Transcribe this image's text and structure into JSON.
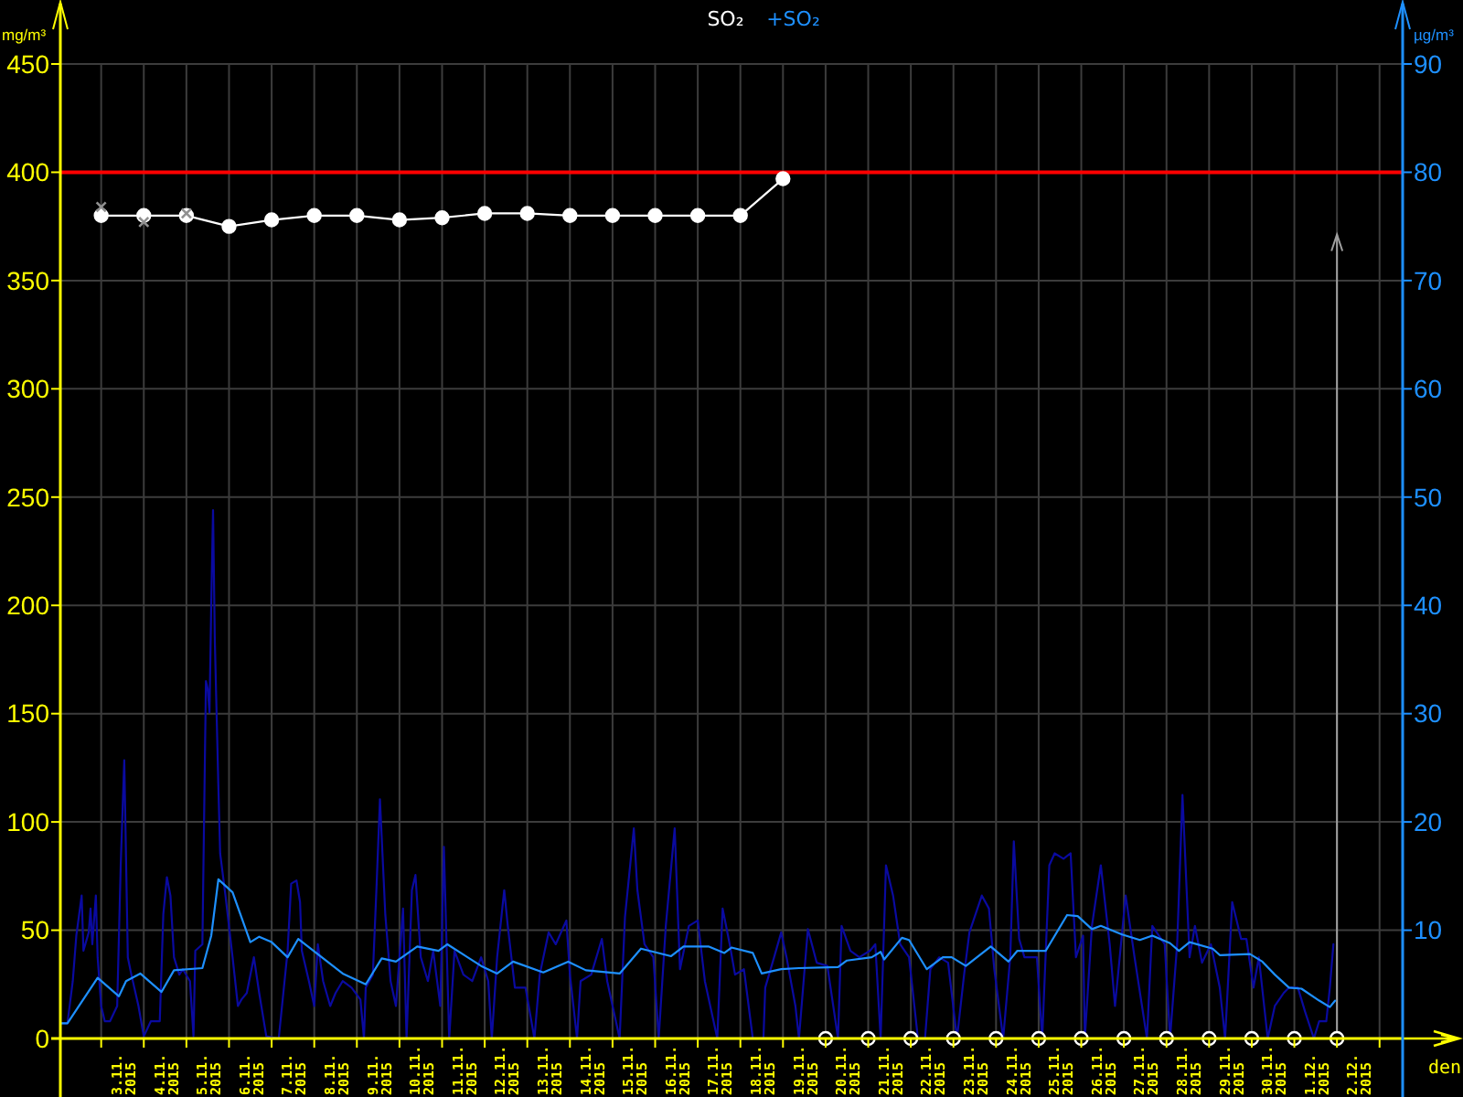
{
  "chart_data": {
    "type": "line",
    "xlabel": "den",
    "ylabel": "mg/m³",
    "y2label": "µg/m³",
    "legend": "top",
    "grid": true,
    "xlim": [
      "2015-11-02T01:00",
      "2015-12-03T13:00"
    ],
    "xticks": [
      {
        "value": "2015-11-03T00:00",
        "label": null
      },
      {
        "value": "2015-11-03T12:00",
        "label": "3.11. 2015"
      },
      {
        "value": "2015-11-04T00:00",
        "label": null
      },
      {
        "value": "2015-11-04T12:00",
        "label": "4.11. 2015"
      },
      {
        "value": "2015-11-05T00:00",
        "label": null
      },
      {
        "value": "2015-11-05T12:00",
        "label": "5.11. 2015"
      },
      {
        "value": "2015-11-06T00:00",
        "label": null
      },
      {
        "value": "2015-11-06T12:00",
        "label": "6.11. 2015"
      },
      {
        "value": "2015-11-07T00:00",
        "label": null
      },
      {
        "value": "2015-11-07T12:00",
        "label": "7.11. 2015"
      },
      {
        "value": "2015-11-08T00:00",
        "label": null
      },
      {
        "value": "2015-11-08T12:00",
        "label": "8.11. 2015"
      },
      {
        "value": "2015-11-09T00:00",
        "label": null
      },
      {
        "value": "2015-11-09T12:00",
        "label": "9.11. 2015"
      },
      {
        "value": "2015-11-10T00:00",
        "label": null
      },
      {
        "value": "2015-11-10T12:00",
        "label": "10.11. 2015"
      },
      {
        "value": "2015-11-11T00:00",
        "label": null
      },
      {
        "value": "2015-11-11T12:00",
        "label": "11.11. 2015"
      },
      {
        "value": "2015-11-12T00:00",
        "label": null
      },
      {
        "value": "2015-11-12T12:00",
        "label": "12.11. 2015"
      },
      {
        "value": "2015-11-13T00:00",
        "label": null
      },
      {
        "value": "2015-11-13T12:00",
        "label": "13.11. 2015"
      },
      {
        "value": "2015-11-14T00:00",
        "label": null
      },
      {
        "value": "2015-11-14T12:00",
        "label": "14.11. 2015"
      },
      {
        "value": "2015-11-15T00:00",
        "label": null
      },
      {
        "value": "2015-11-15T12:00",
        "label": "15.11. 2015"
      },
      {
        "value": "2015-11-16T00:00",
        "label": null
      },
      {
        "value": "2015-11-16T12:00",
        "label": "16.11. 2015"
      },
      {
        "value": "2015-11-17T00:00",
        "label": null
      },
      {
        "value": "2015-11-17T12:00",
        "label": "17.11. 2015"
      },
      {
        "value": "2015-11-18T00:00",
        "label": null
      },
      {
        "value": "2015-11-18T12:00",
        "label": "18.11. 2015"
      },
      {
        "value": "2015-11-19T00:00",
        "label": null
      },
      {
        "value": "2015-11-19T12:00",
        "label": "19.11. 2015"
      },
      {
        "value": "2015-11-20T00:00",
        "label": null
      },
      {
        "value": "2015-11-20T12:00",
        "label": "20.11. 2015"
      },
      {
        "value": "2015-11-21T00:00",
        "label": null
      },
      {
        "value": "2015-11-21T12:00",
        "label": "21.11. 2015"
      },
      {
        "value": "2015-11-22T00:00",
        "label": null
      },
      {
        "value": "2015-11-22T12:00",
        "label": "22.11. 2015"
      },
      {
        "value": "2015-11-23T00:00",
        "label": null
      },
      {
        "value": "2015-11-23T12:00",
        "label": "23.11. 2015"
      },
      {
        "value": "2015-11-24T00:00",
        "label": null
      },
      {
        "value": "2015-11-24T12:00",
        "label": "24.11. 2015"
      },
      {
        "value": "2015-11-25T00:00",
        "label": null
      },
      {
        "value": "2015-11-25T12:00",
        "label": "25.11. 2015"
      },
      {
        "value": "2015-11-26T00:00",
        "label": null
      },
      {
        "value": "2015-11-26T12:00",
        "label": "26.11. 2015"
      },
      {
        "value": "2015-11-27T00:00",
        "label": null
      },
      {
        "value": "2015-11-27T12:00",
        "label": "27.11. 2015"
      },
      {
        "value": "2015-11-28T00:00",
        "label": null
      },
      {
        "value": "2015-11-28T12:00",
        "label": "28.11. 2015"
      },
      {
        "value": "2015-11-29T00:00",
        "label": null
      },
      {
        "value": "2015-11-29T12:00",
        "label": "29.11. 2015"
      },
      {
        "value": "2015-11-30T00:00",
        "label": null
      },
      {
        "value": "2015-11-30T12:00",
        "label": "30.11. 2015"
      },
      {
        "value": "2015-12-01T00:00",
        "label": null
      },
      {
        "value": "2015-12-01T12:00",
        "label": "1.12. 2015"
      },
      {
        "value": "2015-12-02T00:00",
        "label": null
      },
      {
        "value": "2015-12-02T12:00",
        "label": "2.12. 2015"
      },
      {
        "value": "2015-12-03T00:00",
        "label": null
      }
    ],
    "ylim": [
      0,
      450
    ],
    "yticks": [
      0,
      50,
      100,
      150,
      200,
      250,
      300,
      350,
      400,
      450
    ],
    "y2lim": [
      0,
      90
    ],
    "y2ticks": [
      10,
      20,
      30,
      40,
      50,
      60,
      70,
      80,
      90
    ],
    "ref_lines": [
      {
        "axis": "y",
        "value": 400,
        "color": "#ff0000"
      },
      {
        "axis": "x",
        "value": "2015-12-02T00:00",
        "color": "#a0a0a0"
      }
    ],
    "series": [
      {
        "axis": "y2",
        "color": "#0a0aa0",
        "x": [
          "2015-11-02T01:00",
          "2015-11-02T05:00",
          "2015-11-02T08:00",
          "2015-11-02T10:00",
          "2015-11-02T13:00",
          "2015-11-02T14:00",
          "2015-11-02T17:00",
          "2015-11-02T18:00",
          "2015-11-02T19:00",
          "2015-11-02T21:00",
          "2015-11-02T22:00",
          "2015-11-03T00:00",
          "2015-11-03T02:00",
          "2015-11-03T05:00",
          "2015-11-03T09:00",
          "2015-11-03T11:00",
          "2015-11-03T13:00",
          "2015-11-03T15:00",
          "2015-11-03T17:00",
          "2015-11-03T21:00",
          "2015-11-04T00:00",
          "2015-11-04T04:00",
          "2015-11-04T09:00",
          "2015-11-04T11:00",
          "2015-11-04T13:00",
          "2015-11-04T15:00",
          "2015-11-04T17:00",
          "2015-11-04T20:00",
          "2015-11-04T22:00",
          "2015-11-05T02:00",
          "2015-11-05T04:00",
          "2015-11-05T05:00",
          "2015-11-05T09:00",
          "2015-11-05T11:00",
          "2015-11-05T12:00",
          "2015-11-05T13:00",
          "2015-11-05T14:00",
          "2015-11-05T15:00",
          "2015-11-05T16:00",
          "2015-11-05T18:00",
          "2015-11-05T19:00",
          "2015-11-05T22:00",
          "2015-11-06T02:00",
          "2015-11-06T05:00",
          "2015-11-06T07:00",
          "2015-11-06T10:00",
          "2015-11-06T14:00",
          "2015-11-06T17:00",
          "2015-11-06T21:00",
          "2015-11-07T04:00",
          "2015-11-07T09:00",
          "2015-11-07T11:00",
          "2015-11-07T14:00",
          "2015-11-07T16:00",
          "2015-11-07T17:00",
          "2015-11-07T21:00",
          "2015-11-08T00:00",
          "2015-11-08T02:00",
          "2015-11-08T05:00",
          "2015-11-08T09:00",
          "2015-11-08T12:00",
          "2015-11-08T16:00",
          "2015-11-08T21:00",
          "2015-11-09T02:00",
          "2015-11-09T04:00",
          "2015-11-09T05:00",
          "2015-11-09T09:00",
          "2015-11-09T11:00",
          "2015-11-09T13:00",
          "2015-11-09T16:00",
          "2015-11-09T19:00",
          "2015-11-09T22:00",
          "2015-11-10T02:00",
          "2015-11-10T04:00",
          "2015-11-10T07:00",
          "2015-11-10T09:00",
          "2015-11-10T12:00",
          "2015-11-10T16:00",
          "2015-11-10T19:00",
          "2015-11-10T23:00",
          "2015-11-11T01:00",
          "2015-11-11T04:00",
          "2015-11-11T07:00",
          "2015-11-11T12:00",
          "2015-11-11T17:00",
          "2015-11-11T22:00",
          "2015-11-12T02:00",
          "2015-11-12T04:00",
          "2015-11-12T07:00",
          "2015-11-12T11:00",
          "2015-11-12T13:00",
          "2015-11-12T17:00",
          "2015-11-12T23:00",
          "2015-11-13T04:00",
          "2015-11-13T07:00",
          "2015-11-13T12:00",
          "2015-11-13T16:00",
          "2015-11-13T22:00",
          "2015-11-14T00:00",
          "2015-11-14T04:00",
          "2015-11-14T06:00",
          "2015-11-14T12:00",
          "2015-11-14T18:00",
          "2015-11-14T21:00",
          "2015-11-15T04:00",
          "2015-11-15T07:00",
          "2015-11-15T12:00",
          "2015-11-15T14:00",
          "2015-11-15T18:00",
          "2015-11-15T23:00",
          "2015-11-16T02:00",
          "2015-11-16T06:00",
          "2015-11-16T11:00",
          "2015-11-16T14:00",
          "2015-11-16T19:00",
          "2015-11-17T00:00",
          "2015-11-17T04:00",
          "2015-11-17T11:00",
          "2015-11-17T14:00",
          "2015-11-17T18:00",
          "2015-11-17T21:00",
          "2015-11-18T02:00",
          "2015-11-18T07:00",
          "2015-11-18T13:00",
          "2015-11-18T14:00",
          "2015-11-18T19:00",
          "2015-11-18T23:00",
          "2015-11-19T02:00",
          "2015-11-19T07:00",
          "2015-11-19T09:00",
          "2015-11-19T14:00",
          "2015-11-19T19:00",
          "2015-11-20T01:00",
          "2015-11-20T07:00",
          "2015-11-20T09:00",
          "2015-11-20T14:00",
          "2015-11-20T19:00",
          "2015-11-21T01:00",
          "2015-11-21T04:00",
          "2015-11-21T07:00",
          "2015-11-21T10:00",
          "2015-11-21T14:00",
          "2015-11-21T18:00",
          "2015-11-21T23:00",
          "2015-11-22T04:00",
          "2015-11-22T08:00",
          "2015-11-22T11:00",
          "2015-11-22T16:00",
          "2015-11-22T21:00",
          "2015-11-23T02:00",
          "2015-11-23T06:00",
          "2015-11-23T09:00",
          "2015-11-23T16:00",
          "2015-11-23T20:00",
          "2015-11-23T23:00",
          "2015-11-24T04:00",
          "2015-11-24T08:00",
          "2015-11-24T10:00",
          "2015-11-24T13:00",
          "2015-11-24T16:00",
          "2015-11-24T23:00",
          "2015-11-25T02:00",
          "2015-11-25T06:00",
          "2015-11-25T09:00",
          "2015-11-25T14:00",
          "2015-11-25T18:00",
          "2015-11-25T21:00",
          "2015-11-26T01:00",
          "2015-11-26T02:00",
          "2015-11-26T06:00",
          "2015-11-26T11:00",
          "2015-11-26T16:00",
          "2015-11-26T19:00",
          "2015-11-27T01:00",
          "2015-11-27T06:00",
          "2015-11-27T13:00",
          "2015-11-27T16:00",
          "2015-11-27T23:00",
          "2015-11-28T02:00",
          "2015-11-28T06:00",
          "2015-11-28T09:00",
          "2015-11-28T13:00",
          "2015-11-28T16:00",
          "2015-11-28T20:00",
          "2015-11-29T01:00",
          "2015-11-29T06:00",
          "2015-11-29T09:00",
          "2015-11-29T13:00",
          "2015-11-29T18:00",
          "2015-11-29T21:00",
          "2015-11-30T01:00",
          "2015-11-30T04:00",
          "2015-11-30T09:00",
          "2015-11-30T13:00",
          "2015-11-30T18:00",
          "2015-11-30T21:00",
          "2015-12-01T02:00",
          "2015-12-01T06:00",
          "2015-12-01T11:00",
          "2015-12-01T14:00",
          "2015-12-01T18:00",
          "2015-12-01T20:00",
          "2015-12-01T22:00"
        ],
        "values": [
          1.4,
          1.4,
          5.3,
          9.5,
          13.2,
          8.1,
          9.8,
          12.0,
          8.7,
          13.2,
          7.5,
          3.0,
          1.6,
          1.6,
          3.0,
          16.0,
          25.7,
          7.5,
          5.9,
          3.0,
          0.2,
          1.6,
          1.6,
          11.5,
          14.9,
          13.2,
          7.5,
          5.9,
          6.4,
          5.3,
          0.2,
          8.1,
          8.7,
          33.0,
          32.3,
          30.1,
          40.2,
          48.8,
          36.8,
          23.3,
          17.1,
          13.2,
          7.5,
          3.0,
          3.6,
          4.2,
          7.5,
          4.2,
          0.2,
          0,
          8.1,
          14.3,
          14.6,
          12.6,
          8.1,
          5.3,
          3.0,
          8.7,
          5.3,
          3.0,
          4.2,
          5.3,
          4.7,
          3.6,
          0,
          4.7,
          5.9,
          13.7,
          22.1,
          11.5,
          5.3,
          3.0,
          12.0,
          0,
          13.7,
          15.1,
          7.5,
          5.3,
          8.1,
          3.0,
          17.7,
          0,
          8.1,
          5.9,
          5.3,
          7.5,
          5.3,
          0,
          7.5,
          13.7,
          10.4,
          4.7,
          4.7,
          0,
          5.9,
          9.8,
          8.7,
          10.9,
          5.9,
          0,
          5.3,
          5.9,
          9.2,
          5.3,
          0,
          11.2,
          19.4,
          13.7,
          8.7,
          7.5,
          0,
          10.4,
          19.4,
          6.4,
          10.4,
          10.9,
          5.3,
          0,
          12.0,
          8.7,
          5.9,
          6.4,
          0,
          0,
          4.7,
          7.5,
          9.8,
          7.5,
          3.0,
          0,
          10.1,
          7.0,
          6.7,
          0,
          10.4,
          8.1,
          7.5,
          8.1,
          8.7,
          0,
          16.0,
          13.2,
          8.7,
          7.5,
          0,
          0,
          6.4,
          7.5,
          7.0,
          0,
          5.9,
          9.8,
          13.2,
          12.0,
          6.4,
          0,
          7.5,
          18.2,
          9.2,
          7.5,
          7.5,
          0,
          16.0,
          17.1,
          16.6,
          17.1,
          7.5,
          9.5,
          0,
          10.4,
          16.0,
          8.7,
          3.0,
          13.2,
          7.5,
          0,
          10.4,
          8.7,
          0,
          8.7,
          22.5,
          7.5,
          10.4,
          7.0,
          8.7,
          4.7,
          0,
          12.6,
          9.2,
          9.2,
          4.7,
          7.5,
          0,
          3.0,
          4.2,
          4.7,
          4.7,
          2.5,
          0,
          1.6,
          1.6,
          4.7,
          8.7
        ]
      },
      {
        "name": "SO₂",
        "color": "#ffffff",
        "marker": "circle",
        "x": [
          "2015-11-03T00:00",
          "2015-11-04T00:00",
          "2015-11-05T00:00",
          "2015-11-06T00:00",
          "2015-11-07T00:00",
          "2015-11-08T00:00",
          "2015-11-09T00:00",
          "2015-11-10T00:00",
          "2015-11-11T00:00",
          "2015-11-12T00:00",
          "2015-11-13T00:00",
          "2015-11-14T00:00",
          "2015-11-15T00:00",
          "2015-11-16T00:00",
          "2015-11-17T00:00",
          "2015-11-18T00:00",
          "2015-11-19T00:00"
        ],
        "values": [
          380,
          380,
          380,
          375,
          378,
          380,
          380,
          378,
          379,
          381,
          381,
          380,
          380,
          380,
          380,
          380,
          397
        ]
      },
      {
        "name": "+SO₂",
        "axis": "y2",
        "color": "#1e90ff",
        "x": [
          "2015-11-02T01:00",
          "2015-11-02T05:00",
          "2015-11-02T22:00",
          "2015-11-03T10:00",
          "2015-11-03T14:00",
          "2015-11-03T22:00",
          "2015-11-04T10:00",
          "2015-11-04T17:00",
          "2015-11-05T09:00",
          "2015-11-05T14:00",
          "2015-11-05T18:00",
          "2015-11-06T02:00",
          "2015-11-06T12:00",
          "2015-11-06T17:00",
          "2015-11-07T00:00",
          "2015-11-07T09:00",
          "2015-11-07T15:00",
          "2015-11-08T16:00",
          "2015-11-09T05:00",
          "2015-11-09T14:00",
          "2015-11-09T22:00",
          "2015-11-10T10:00",
          "2015-11-10T22:00",
          "2015-11-11T03:00",
          "2015-11-11T22:00",
          "2015-11-12T07:00",
          "2015-11-12T16:00",
          "2015-11-13T09:00",
          "2015-11-13T23:00",
          "2015-11-14T09:00",
          "2015-11-15T04:00",
          "2015-11-15T16:00",
          "2015-11-16T09:00",
          "2015-11-16T16:00",
          "2015-11-17T06:00",
          "2015-11-17T15:00",
          "2015-11-17T19:00",
          "2015-11-18T07:00",
          "2015-11-18T12:00",
          "2015-11-18T23:00",
          "2015-11-19T09:00",
          "2015-11-20T07:00",
          "2015-11-20T12:00",
          "2015-11-21T02:00",
          "2015-11-21T07:00",
          "2015-11-21T09:00",
          "2015-11-21T19:00",
          "2015-11-21T23:00",
          "2015-11-22T09:00",
          "2015-11-22T18:00",
          "2015-11-22T23:00",
          "2015-11-23T07:00",
          "2015-11-23T21:00",
          "2015-11-24T07:00",
          "2015-11-24T12:00",
          "2015-11-25T04:00",
          "2015-11-25T16:00",
          "2015-11-25T22:00",
          "2015-11-26T06:00",
          "2015-11-26T11:00",
          "2015-11-26T23:00",
          "2015-11-27T09:00",
          "2015-11-27T16:00",
          "2015-11-28T02:00",
          "2015-11-28T07:00",
          "2015-11-28T13:00",
          "2015-11-29T02:00",
          "2015-11-29T06:00",
          "2015-11-29T23:00",
          "2015-11-30T06:00",
          "2015-11-30T13:00",
          "2015-11-30T21:00",
          "2015-12-01T04:00",
          "2015-12-01T14:00",
          "2015-12-01T20:00",
          "2015-12-01T23:00"
        ],
        "values": [
          1.4,
          1.4,
          5.6,
          3.9,
          5.3,
          6.0,
          4.3,
          6.3,
          6.5,
          9.5,
          14.7,
          13.5,
          8.9,
          9.4,
          8.9,
          7.5,
          9.2,
          6.0,
          5.0,
          7.4,
          7.1,
          8.5,
          8.1,
          8.7,
          6.7,
          6.0,
          7.1,
          6.1,
          7.1,
          6.3,
          6.0,
          8.3,
          7.6,
          8.5,
          8.5,
          7.9,
          8.4,
          7.9,
          6.0,
          6.4,
          6.5,
          6.6,
          7.2,
          7.5,
          8.0,
          7.3,
          9.3,
          9.1,
          6.4,
          7.5,
          7.5,
          6.7,
          8.5,
          7.1,
          8.1,
          8.1,
          11.4,
          11.3,
          10.1,
          10.4,
          9.6,
          9.1,
          9.5,
          8.8,
          8.1,
          8.9,
          8.3,
          7.7,
          7.8,
          7.1,
          5.9,
          4.7,
          4.6,
          3.5,
          2.9,
          3.5
        ]
      },
      {
        "type": "scatter",
        "color": "#909090",
        "marker": "cross",
        "x": [
          "2015-11-03T00:00",
          "2015-11-04T00:00",
          "2015-11-05T00:00"
        ],
        "values": [
          384,
          377,
          381
        ]
      },
      {
        "type": "scatter",
        "color": "#ffffff",
        "marker": "circle",
        "x": [
          "2015-11-20T00:00",
          "2015-11-21T00:00",
          "2015-11-22T00:00",
          "2015-11-23T00:00",
          "2015-11-24T00:00",
          "2015-11-25T00:00",
          "2015-11-26T00:00",
          "2015-11-27T00:00",
          "2015-11-28T00:00",
          "2015-11-29T00:00",
          "2015-11-30T00:00",
          "2015-12-01T00:00",
          "2015-12-02T00:00"
        ],
        "values": [
          0,
          0,
          0,
          0,
          0,
          0,
          0,
          0,
          0,
          0,
          0,
          0,
          0
        ]
      }
    ]
  }
}
